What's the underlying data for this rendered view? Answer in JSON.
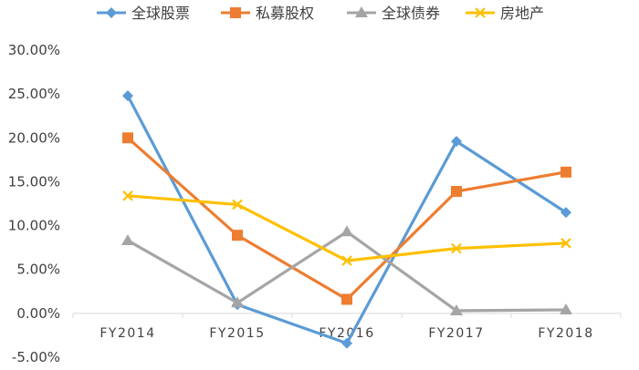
{
  "chart_data": {
    "type": "line",
    "title": "",
    "xlabel": "",
    "ylabel": "",
    "categories": [
      "FY2014",
      "FY2015",
      "FY2016",
      "FY2017",
      "FY2018"
    ],
    "ylim": [
      -0.05,
      0.3
    ],
    "yticks": [
      -0.05,
      0.0,
      0.05,
      0.1,
      0.15,
      0.2,
      0.25,
      0.3
    ],
    "ytick_labels": [
      "-5.00%",
      "0.00%",
      "5.00%",
      "10.00%",
      "15.00%",
      "20.00%",
      "25.00%",
      "30.00%"
    ],
    "grid": false,
    "legend_position": "top",
    "series": [
      {
        "name": "全球股票",
        "color": "#5B9BD5",
        "marker": "diamond",
        "values": [
          0.248,
          0.01,
          -0.034,
          0.196,
          0.115
        ]
      },
      {
        "name": "私募股权",
        "color": "#ED7D31",
        "marker": "square",
        "values": [
          0.2,
          0.089,
          0.016,
          0.139,
          0.161
        ]
      },
      {
        "name": "全球债券",
        "color": "#A5A5A5",
        "marker": "triangle",
        "values": [
          0.083,
          0.012,
          0.093,
          0.003,
          0.004
        ]
      },
      {
        "name": "房地产",
        "color": "#FFC000",
        "marker": "x",
        "values": [
          0.134,
          0.124,
          0.06,
          0.074,
          0.08
        ]
      }
    ]
  }
}
